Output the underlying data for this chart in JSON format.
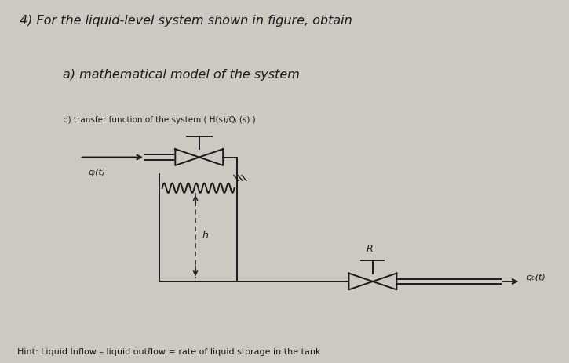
{
  "title_line1": "4) For the liquid-level system shown in figure, obtain",
  "title_line2": "a) mathematical model of the system",
  "subtitle": "b) transfer function of the system ( H(s)/Qᵢ (s) )",
  "hint": "Hint: Liquid Inflow – liquid outflow = rate of liquid storage in the tank",
  "label_qi": "qᵢ(t)",
  "label_qo": "q₀(t)",
  "label_h": "h",
  "label_R": "R",
  "bg_top": "#ccc8c2",
  "bg_bottom": "#bfbbb5",
  "text_color": "#1a1a1a",
  "line_color": "#1a1a1a"
}
